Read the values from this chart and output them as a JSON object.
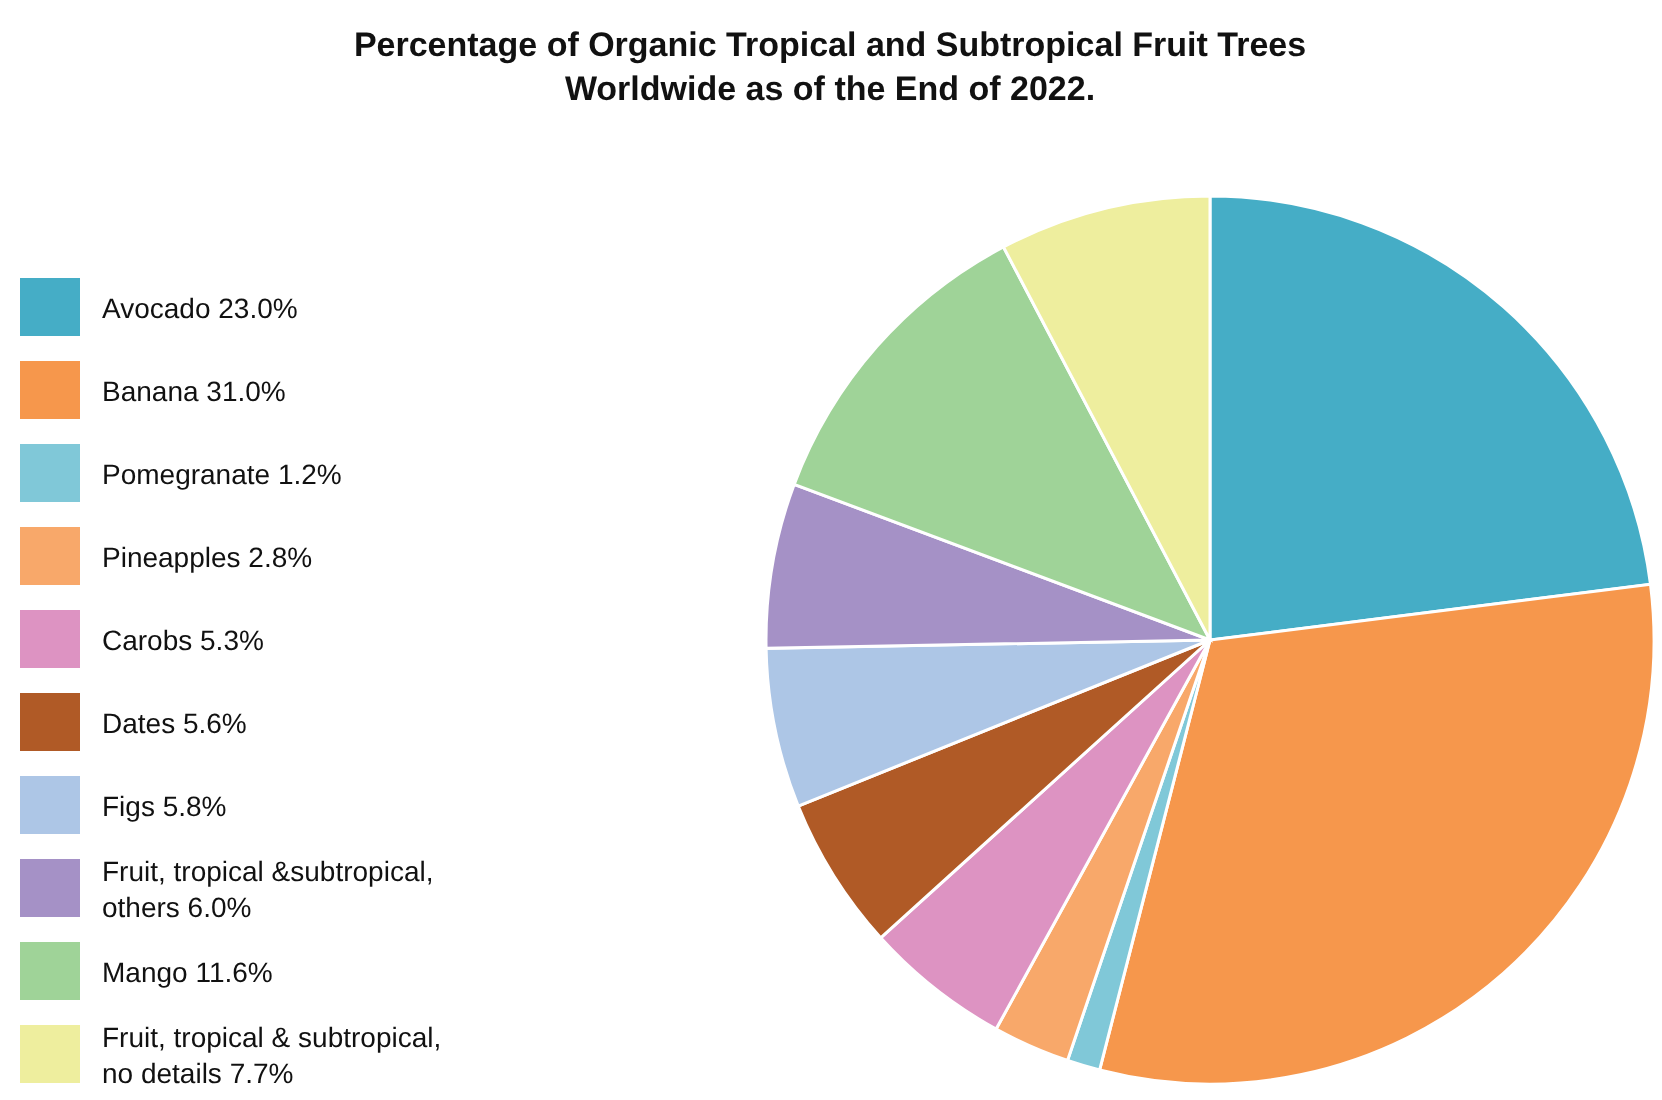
{
  "chart_data": {
    "type": "pie",
    "title": "Percentage of Organic Tropical and Subtropical Fruit Trees Worldwide as of the End of 2022.",
    "categories": [
      "Avocado",
      "Banana",
      "Pomegranate",
      "Pineapples",
      "Carobs",
      "Dates",
      "Figs",
      "Fruit, tropical &subtropical, others",
      "Mango",
      "Fruit, tropical & subtropical, no details"
    ],
    "values": [
      23.0,
      31.0,
      1.2,
      2.8,
      5.3,
      5.6,
      5.8,
      6.0,
      11.6,
      7.7
    ],
    "value_labels": [
      "23.0%",
      "31.0%",
      "1.2%",
      "2.8%",
      "5.3%",
      "5.6%",
      "5.8%",
      "6.0%",
      "11.6%",
      "7.7%"
    ],
    "colors": [
      "#45adc6",
      "#f6974c",
      "#80c8d8",
      "#f8a86a",
      "#dd93c2",
      "#b05a26",
      "#adc6e6",
      "#a591c6",
      "#9fd398",
      "#eeee9e"
    ],
    "legend": "left"
  }
}
